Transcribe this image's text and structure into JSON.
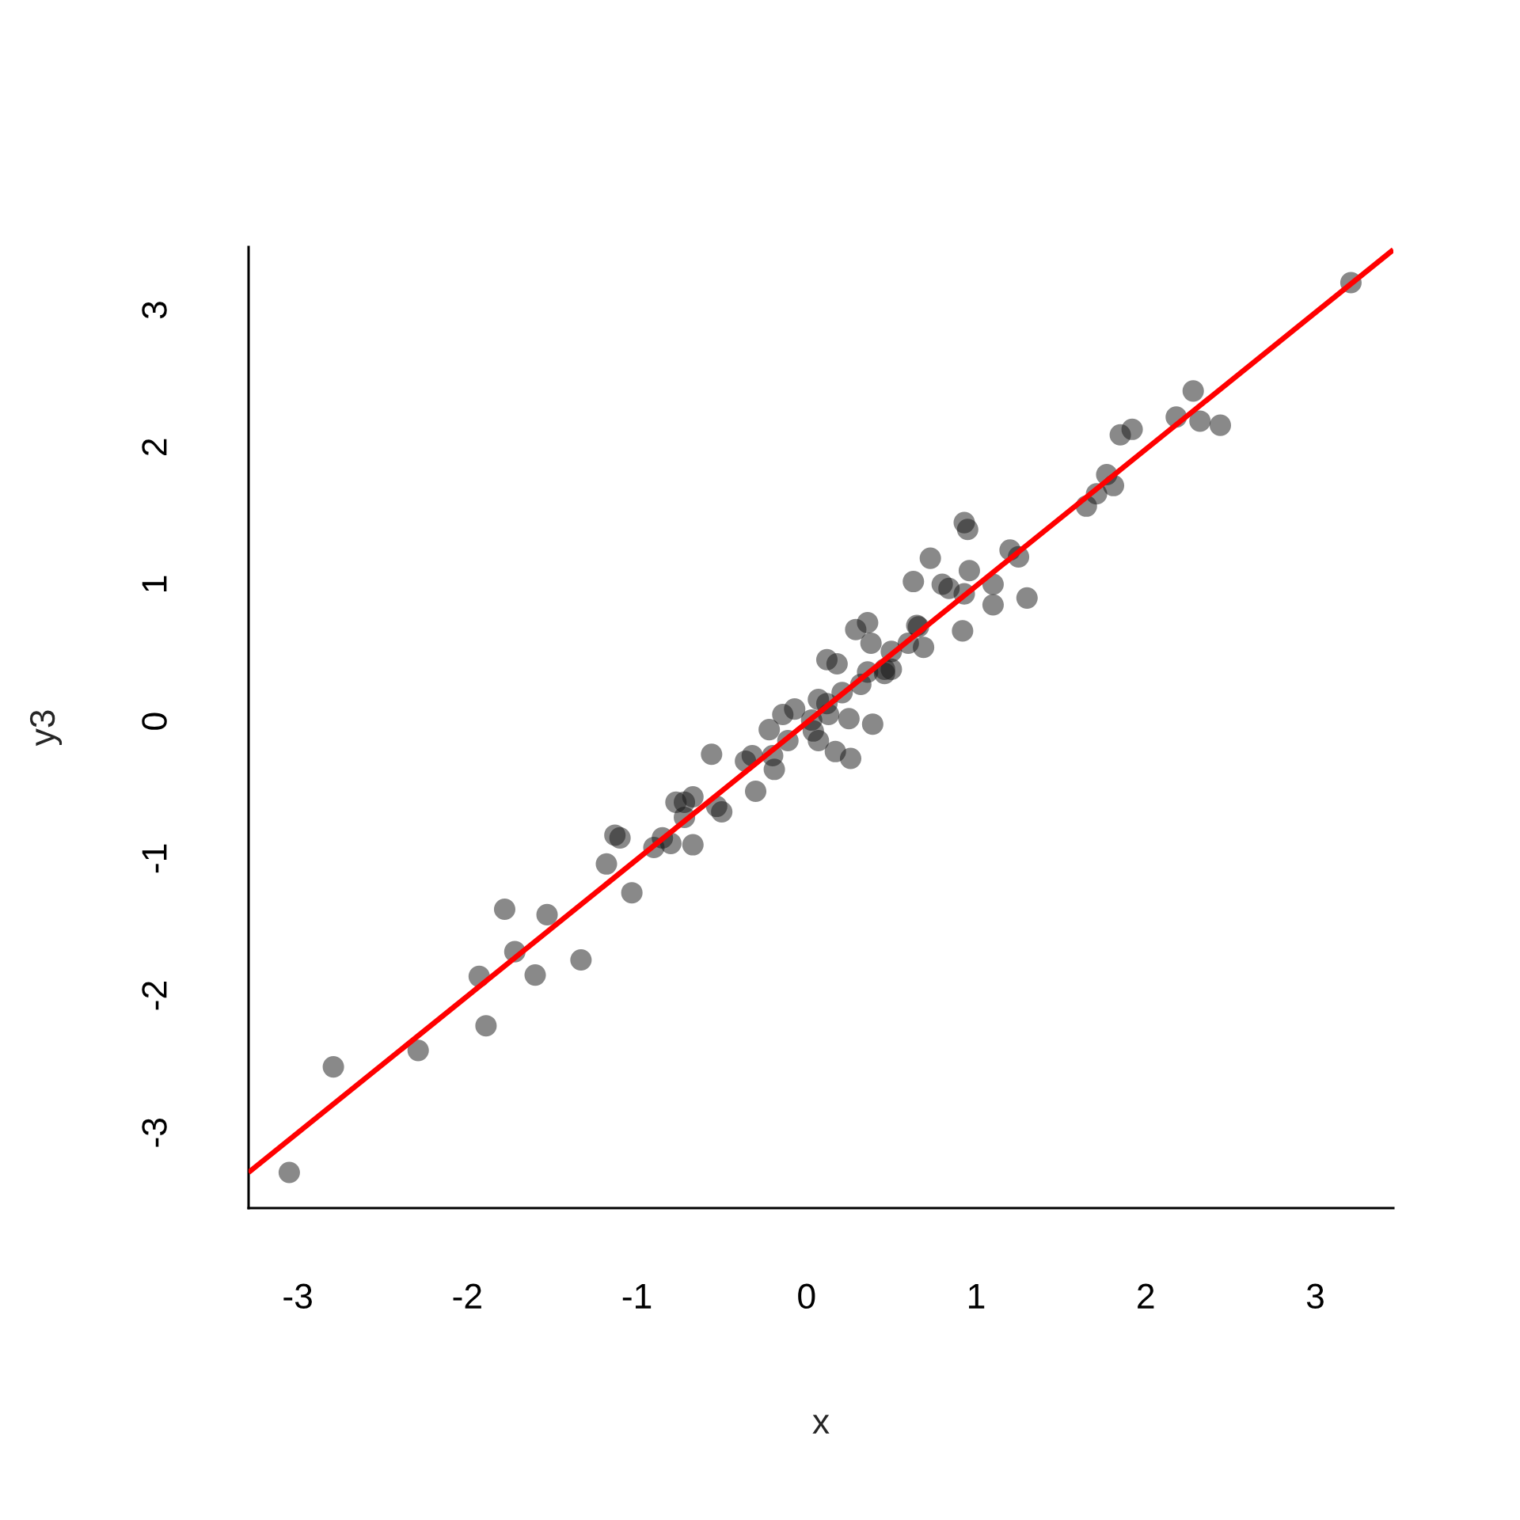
{
  "chart_data": {
    "type": "scatter",
    "xlabel": "x",
    "ylabel": "y3",
    "xlim": [
      -3.29,
      3.46
    ],
    "ylim": [
      -3.55,
      3.46
    ],
    "xticks": [
      -3,
      -2,
      -1,
      0,
      1,
      2,
      3
    ],
    "yticks": [
      -3,
      -2,
      -1,
      0,
      1,
      2,
      3
    ],
    "series": [
      {
        "color": "#898989",
        "marker": "circle",
        "x": [
          -3.05,
          -2.79,
          -2.29,
          -1.93,
          -1.89,
          -1.78,
          -1.72,
          -1.6,
          -1.53,
          -1.33,
          -1.18,
          -1.13,
          -1.1,
          -1.03,
          -0.9,
          -0.85,
          -0.8,
          -0.67,
          -0.77,
          -0.72,
          -0.67,
          -0.72,
          -0.53,
          -0.5,
          -0.56,
          -0.36,
          -0.32,
          -0.3,
          -0.22,
          -0.2,
          -0.19,
          -0.14,
          -0.07,
          -0.11,
          0.03,
          0.04,
          0.07,
          0.12,
          0.13,
          0.07,
          0.17,
          0.26,
          0.25,
          0.39,
          0.12,
          0.18,
          0.21,
          0.32,
          0.36,
          0.46,
          0.5,
          0.38,
          0.29,
          0.36,
          0.46,
          0.5,
          0.6,
          0.66,
          0.69,
          0.63,
          0.73,
          0.8,
          0.84,
          0.93,
          0.95,
          0.96,
          0.93,
          1.1,
          1.1,
          1.3,
          0.92,
          1.2,
          1.25,
          0.65,
          1.65,
          1.71,
          1.77,
          1.81,
          1.85,
          1.92,
          2.18,
          2.28,
          2.32,
          2.44,
          3.21
        ],
        "values": [
          -3.29,
          -2.52,
          -2.4,
          -1.86,
          -2.22,
          -1.37,
          -1.68,
          -1.85,
          -1.41,
          -1.74,
          -1.04,
          -0.83,
          -0.85,
          -1.25,
          -0.92,
          -0.85,
          -0.89,
          -0.9,
          -0.59,
          -0.59,
          -0.55,
          -0.7,
          -0.62,
          -0.66,
          -0.24,
          -0.29,
          -0.25,
          -0.51,
          -0.06,
          -0.25,
          -0.35,
          0.05,
          0.09,
          -0.14,
          0.01,
          -0.07,
          0.16,
          0.13,
          0.05,
          -0.14,
          -0.22,
          -0.27,
          0.02,
          -0.02,
          0.45,
          0.42,
          0.21,
          0.27,
          0.36,
          0.38,
          0.38,
          0.57,
          0.67,
          0.72,
          0.35,
          0.51,
          0.57,
          0.69,
          0.54,
          1.02,
          1.19,
          1.0,
          0.97,
          1.45,
          1.4,
          1.1,
          0.93,
          1.0,
          0.85,
          0.9,
          0.66,
          1.25,
          1.2,
          0.7,
          1.57,
          1.66,
          1.8,
          1.72,
          2.09,
          2.13,
          2.22,
          2.41,
          2.19,
          2.16,
          3.2
        ]
      },
      {
        "type": "line",
        "color": "#ff0000",
        "x": [
          -3.29,
          3.46
        ],
        "values": [
          -3.29,
          3.44
        ]
      }
    ]
  }
}
